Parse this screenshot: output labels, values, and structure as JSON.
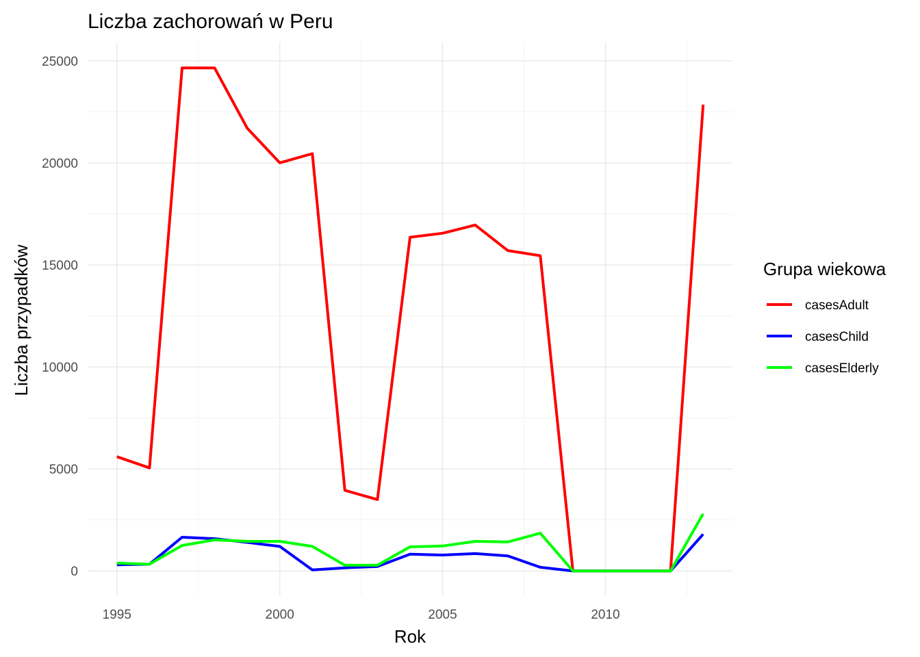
{
  "chart_data": {
    "type": "line",
    "title": "Liczba zachorowań w Peru",
    "xlabel": "Rok",
    "ylabel": "Liczba przypadków",
    "x": [
      1995,
      1996,
      1997,
      1998,
      1999,
      2000,
      2001,
      2002,
      2003,
      2004,
      2005,
      2006,
      2007,
      2008,
      2009,
      2010,
      2011,
      2012,
      2013
    ],
    "xlim": [
      1994.1,
      2013.9
    ],
    "ylim": [
      -1200,
      25900
    ],
    "x_ticks": [
      1995,
      2000,
      2005,
      2010
    ],
    "x_tick_labels": [
      "1995",
      "2000",
      "2005",
      "2010"
    ],
    "y_ticks": [
      0,
      5000,
      10000,
      15000,
      20000,
      25000
    ],
    "y_tick_labels": [
      "0",
      "5000",
      "10000",
      "15000",
      "20000",
      "25000"
    ],
    "grid": true,
    "legend": {
      "title": "Grupa wiekowa",
      "position": "right"
    },
    "series": [
      {
        "name": "casesAdult",
        "color": "#ff0000",
        "values": [
          5600,
          5050,
          24650,
          24650,
          21700,
          20000,
          20450,
          3950,
          3500,
          16350,
          16550,
          16950,
          15700,
          15450,
          0,
          0,
          0,
          0,
          22850
        ]
      },
      {
        "name": "casesChild",
        "color": "#0000ff",
        "values": [
          300,
          330,
          1650,
          1580,
          1400,
          1200,
          50,
          150,
          220,
          820,
          780,
          850,
          740,
          180,
          0,
          0,
          0,
          0,
          1800
        ]
      },
      {
        "name": "casesElderly",
        "color": "#00ff00",
        "values": [
          380,
          330,
          1250,
          1520,
          1450,
          1450,
          1200,
          280,
          280,
          1180,
          1220,
          1450,
          1420,
          1850,
          0,
          0,
          0,
          0,
          2800
        ]
      }
    ]
  }
}
